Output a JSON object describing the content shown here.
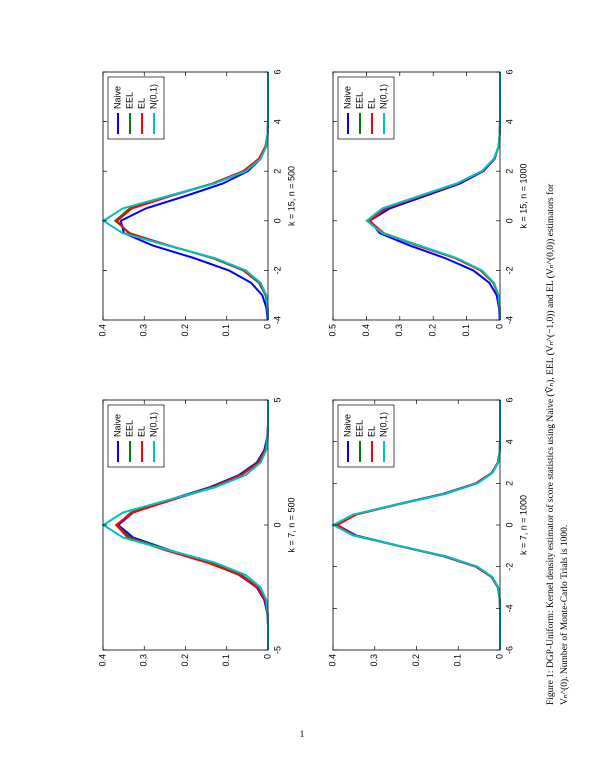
{
  "page_number": "1",
  "caption": [
    "Figure 1: DGP-Uniform: Kernel density estimator of score statistics using Naive (V̂ₙ), EEL (Vₙ^(−1,0)) and EL (Vₙ^(0,0)) estimators for",
    "Vₙ^(0). Number of Monte-Carlo Trials is 1000."
  ],
  "chart_data": [
    {
      "type": "line",
      "x_label": "k = 7, n = 500",
      "xlim": [
        -5,
        5
      ],
      "xticks": [
        -5,
        0,
        5
      ],
      "ylim": [
        0,
        0.4
      ],
      "yticks": [
        0,
        0.1,
        0.2,
        0.3,
        0.4
      ],
      "legend": "upper right",
      "x": [
        -5,
        -4.5,
        -4,
        -3.5,
        -3,
        -2.5,
        -2,
        -1.5,
        -1,
        -0.5,
        0,
        0.5,
        1,
        1.5,
        2,
        2.5,
        3,
        3.5,
        4,
        4.5,
        5
      ],
      "series": [
        {
          "name": "Naive",
          "color": "#0000ff",
          "values": [
            0,
            0,
            0,
            0.002,
            0.009,
            0.027,
            0.07,
            0.143,
            0.24,
            0.327,
            0.363,
            0.327,
            0.24,
            0.143,
            0.07,
            0.027,
            0.009,
            0.002,
            0,
            0,
            0
          ]
        },
        {
          "name": "EEL",
          "color": "#008000",
          "values": [
            0,
            0,
            0,
            0.001,
            0.007,
            0.024,
            0.064,
            0.14,
            0.242,
            0.335,
            0.366,
            0.332,
            0.238,
            0.138,
            0.066,
            0.024,
            0.007,
            0.001,
            0,
            0,
            0
          ]
        },
        {
          "name": "EL",
          "color": "#ff0000",
          "values": [
            0,
            0,
            0,
            0.001,
            0.007,
            0.025,
            0.068,
            0.148,
            0.25,
            0.34,
            0.368,
            0.328,
            0.233,
            0.135,
            0.064,
            0.023,
            0.006,
            0.001,
            0,
            0,
            0
          ]
        },
        {
          "name": "N(0,1)",
          "color": "#00c0c0",
          "values": [
            0,
            0,
            0,
            0.001,
            0.004,
            0.018,
            0.054,
            0.13,
            0.242,
            0.352,
            0.399,
            0.352,
            0.242,
            0.13,
            0.054,
            0.018,
            0.004,
            0.001,
            0,
            0,
            0
          ]
        }
      ]
    },
    {
      "type": "line",
      "x_label": "k = 15, n = 500",
      "xlim": [
        -4,
        6
      ],
      "xticks": [
        -4,
        -2,
        0,
        2,
        4,
        6
      ],
      "ylim": [
        0,
        0.4
      ],
      "yticks": [
        0,
        0.1,
        0.2,
        0.3,
        0.4
      ],
      "legend": "upper right",
      "x": [
        -4,
        -3.5,
        -3,
        -2.5,
        -2,
        -1.5,
        -1,
        -0.5,
        0,
        0.5,
        1,
        1.5,
        2,
        2.5,
        3,
        3.5,
        4,
        4.5,
        5,
        5.5,
        6
      ],
      "series": [
        {
          "name": "Naive",
          "color": "#0000ff",
          "values": [
            0.001,
            0.004,
            0.014,
            0.041,
            0.095,
            0.18,
            0.279,
            0.349,
            0.357,
            0.296,
            0.2,
            0.11,
            0.049,
            0.018,
            0.005,
            0.001,
            0,
            0,
            0,
            0,
            0
          ]
        },
        {
          "name": "EEL",
          "color": "#008000",
          "values": [
            0,
            0.001,
            0.006,
            0.022,
            0.06,
            0.135,
            0.24,
            0.335,
            0.37,
            0.335,
            0.24,
            0.135,
            0.06,
            0.022,
            0.006,
            0.001,
            0,
            0,
            0,
            0,
            0
          ]
        },
        {
          "name": "EL",
          "color": "#ff0000",
          "values": [
            0,
            0.001,
            0.005,
            0.02,
            0.058,
            0.133,
            0.24,
            0.338,
            0.366,
            0.33,
            0.236,
            0.133,
            0.06,
            0.022,
            0.006,
            0.001,
            0,
            0,
            0,
            0,
            0
          ]
        },
        {
          "name": "N(0,1)",
          "color": "#00c0c0",
          "values": [
            0,
            0.001,
            0.004,
            0.018,
            0.054,
            0.13,
            0.242,
            0.352,
            0.399,
            0.352,
            0.242,
            0.13,
            0.054,
            0.018,
            0.004,
            0.001,
            0,
            0,
            0,
            0,
            0
          ]
        }
      ]
    },
    {
      "type": "line",
      "x_label": "k = 7, n = 1000",
      "xlim": [
        -6,
        6
      ],
      "xticks": [
        -6,
        -4,
        -2,
        0,
        2,
        4,
        6
      ],
      "ylim": [
        0,
        0.4
      ],
      "yticks": [
        0,
        0.1,
        0.2,
        0.3,
        0.4
      ],
      "legend": "upper right",
      "x": [
        -6,
        -5.5,
        -5,
        -4.5,
        -4,
        -3.5,
        -3,
        -2.5,
        -2,
        -1.5,
        -1,
        -0.5,
        0,
        0.5,
        1,
        1.5,
        2,
        2.5,
        3,
        3.5,
        4,
        4.5,
        5,
        5.5,
        6
      ],
      "series": [
        {
          "name": "Naive",
          "color": "#0000ff",
          "values": [
            0,
            0,
            0,
            0,
            0,
            0.001,
            0.005,
            0.02,
            0.058,
            0.135,
            0.243,
            0.345,
            0.39,
            0.347,
            0.245,
            0.135,
            0.058,
            0.02,
            0.005,
            0.001,
            0,
            0,
            0,
            0,
            0
          ]
        },
        {
          "name": "EEL",
          "color": "#008000",
          "values": [
            0,
            0,
            0,
            0,
            0,
            0.001,
            0.005,
            0.019,
            0.056,
            0.132,
            0.242,
            0.348,
            0.393,
            0.349,
            0.243,
            0.132,
            0.056,
            0.019,
            0.005,
            0.001,
            0,
            0,
            0,
            0,
            0
          ]
        },
        {
          "name": "EL",
          "color": "#ff0000",
          "values": [
            0,
            0,
            0,
            0,
            0,
            0.001,
            0.005,
            0.02,
            0.057,
            0.134,
            0.245,
            0.35,
            0.39,
            0.345,
            0.24,
            0.132,
            0.057,
            0.019,
            0.005,
            0.001,
            0,
            0,
            0,
            0,
            0
          ]
        },
        {
          "name": "N(0,1)",
          "color": "#00c0c0",
          "values": [
            0,
            0,
            0,
            0,
            0,
            0.001,
            0.004,
            0.018,
            0.054,
            0.13,
            0.242,
            0.352,
            0.399,
            0.352,
            0.242,
            0.13,
            0.054,
            0.018,
            0.004,
            0.001,
            0,
            0,
            0,
            0,
            0
          ]
        }
      ]
    },
    {
      "type": "line",
      "x_label": "k = 15, n = 1000",
      "xlim": [
        -4,
        6
      ],
      "xticks": [
        -4,
        -2,
        0,
        2,
        4,
        6
      ],
      "ylim": [
        0,
        0.5
      ],
      "yticks": [
        0,
        0.1,
        0.2,
        0.3,
        0.4,
        0.5
      ],
      "legend": "upper right",
      "x": [
        -4,
        -3.5,
        -3,
        -2.5,
        -2,
        -1.5,
        -1,
        -0.5,
        0,
        0.5,
        1,
        1.5,
        2,
        2.5,
        3,
        3.5,
        4,
        4.5,
        5,
        5.5,
        6
      ],
      "series": [
        {
          "name": "Naive",
          "color": "#0000ff",
          "values": [
            0.001,
            0.003,
            0.01,
            0.032,
            0.08,
            0.165,
            0.27,
            0.36,
            0.39,
            0.33,
            0.225,
            0.12,
            0.05,
            0.016,
            0.004,
            0.001,
            0,
            0,
            0,
            0,
            0
          ]
        },
        {
          "name": "EEL",
          "color": "#008000",
          "values": [
            0,
            0.001,
            0.005,
            0.02,
            0.057,
            0.133,
            0.243,
            0.348,
            0.392,
            0.345,
            0.24,
            0.13,
            0.054,
            0.018,
            0.004,
            0.001,
            0,
            0,
            0,
            0,
            0
          ]
        },
        {
          "name": "EL",
          "color": "#ff0000",
          "values": [
            0,
            0.001,
            0.005,
            0.02,
            0.058,
            0.135,
            0.248,
            0.35,
            0.39,
            0.342,
            0.236,
            0.128,
            0.053,
            0.017,
            0.004,
            0.001,
            0,
            0,
            0,
            0,
            0
          ]
        },
        {
          "name": "N(0,1)",
          "color": "#00c0c0",
          "values": [
            0,
            0.001,
            0.004,
            0.018,
            0.054,
            0.13,
            0.242,
            0.352,
            0.399,
            0.352,
            0.242,
            0.13,
            0.054,
            0.018,
            0.004,
            0.001,
            0,
            0,
            0,
            0,
            0
          ]
        }
      ]
    }
  ]
}
